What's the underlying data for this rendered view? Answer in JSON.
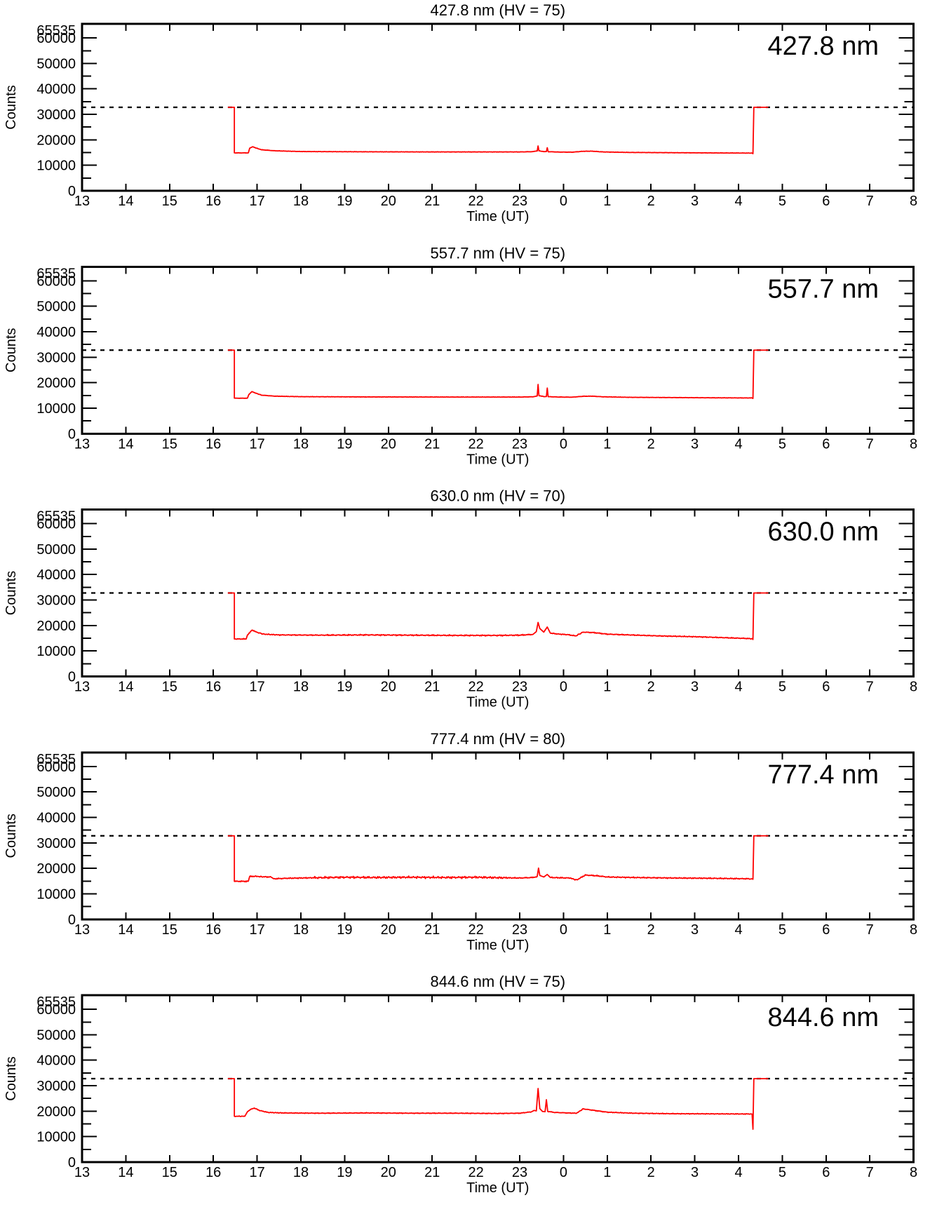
{
  "page": {
    "background": "#ffffff"
  },
  "colors": {
    "series": "#ff0000",
    "axis": "#000000",
    "threshold_line": "#000000",
    "text": "#000000"
  },
  "axis": {
    "x_label": "Time (UT)",
    "y_label": "Counts",
    "x_tick_labels": [
      "13",
      "14",
      "15",
      "16",
      "17",
      "18",
      "19",
      "20",
      "21",
      "22",
      "23",
      "0",
      "1",
      "2",
      "3",
      "4",
      "5",
      "6",
      "7",
      "8"
    ],
    "x_start_hour": 13,
    "x_span_hours": 19,
    "y_tick_labels": [
      "0",
      "10000",
      "20000",
      "30000",
      "40000",
      "50000",
      "60000",
      "65535"
    ],
    "y_major_values": [
      0,
      10000,
      20000,
      30000,
      40000,
      50000,
      60000,
      65535
    ],
    "y_minor_step": 5000,
    "ylim": [
      0,
      65535
    ],
    "threshold_value": 32767,
    "grid": false
  },
  "chart_data": [
    {
      "type": "line",
      "title": "427.8 nm (HV = 75)",
      "corner_label": "427.8 nm",
      "wavelength_nm": 427.8,
      "hv": 75,
      "xlabel": "Time (UT)",
      "ylabel": "Counts",
      "noise_amp": 90,
      "noise_boost": null,
      "series": [
        [
          16.33,
          32767
        ],
        [
          16.48,
          32767
        ],
        [
          16.48,
          14870
        ],
        [
          16.8,
          14870
        ],
        [
          16.83,
          16700
        ],
        [
          16.9,
          17300
        ],
        [
          16.97,
          16800
        ],
        [
          17.1,
          16100
        ],
        [
          17.4,
          15700
        ],
        [
          18.0,
          15400
        ],
        [
          19.5,
          15300
        ],
        [
          21.0,
          15250
        ],
        [
          23.0,
          15250
        ],
        [
          23.3,
          15350
        ],
        [
          23.4,
          15650
        ],
        [
          23.42,
          17600
        ],
        [
          23.44,
          15650
        ],
        [
          23.55,
          15400
        ],
        [
          23.61,
          15400
        ],
        [
          23.63,
          16900
        ],
        [
          23.65,
          15350
        ],
        [
          23.9,
          15200
        ],
        [
          0.2,
          15150
        ],
        [
          0.45,
          15500
        ],
        [
          0.65,
          15550
        ],
        [
          0.9,
          15250
        ],
        [
          1.5,
          15050
        ],
        [
          2.5,
          14950
        ],
        [
          3.5,
          14850
        ],
        [
          4.2,
          14800
        ],
        [
          4.31,
          14800
        ],
        [
          4.33,
          14550
        ],
        [
          4.35,
          32767
        ],
        [
          4.68,
          32767
        ]
      ]
    },
    {
      "type": "line",
      "title": "557.7 nm (HV = 75)",
      "corner_label": "557.7 nm",
      "wavelength_nm": 557.7,
      "hv": 75,
      "xlabel": "Time (UT)",
      "ylabel": "Counts",
      "noise_amp": 90,
      "noise_boost": null,
      "series": [
        [
          16.33,
          32767
        ],
        [
          16.48,
          32767
        ],
        [
          16.48,
          13900
        ],
        [
          16.78,
          13900
        ],
        [
          16.81,
          15300
        ],
        [
          16.88,
          16500
        ],
        [
          16.95,
          16000
        ],
        [
          17.1,
          15100
        ],
        [
          17.4,
          14700
        ],
        [
          18.0,
          14500
        ],
        [
          19.5,
          14400
        ],
        [
          21.5,
          14350
        ],
        [
          23.0,
          14350
        ],
        [
          23.3,
          14450
        ],
        [
          23.4,
          14800
        ],
        [
          23.42,
          19300
        ],
        [
          23.44,
          14900
        ],
        [
          23.55,
          14550
        ],
        [
          23.61,
          14550
        ],
        [
          23.63,
          17900
        ],
        [
          23.65,
          14500
        ],
        [
          23.9,
          14350
        ],
        [
          0.2,
          14300
        ],
        [
          0.45,
          14650
        ],
        [
          0.65,
          14700
        ],
        [
          0.9,
          14450
        ],
        [
          1.5,
          14250
        ],
        [
          2.5,
          14150
        ],
        [
          3.5,
          14050
        ],
        [
          4.2,
          14000
        ],
        [
          4.31,
          14000
        ],
        [
          4.33,
          13800
        ],
        [
          4.35,
          32767
        ],
        [
          4.68,
          32767
        ]
      ]
    },
    {
      "type": "line",
      "title": "630.0 nm (HV = 70)",
      "corner_label": "630.0 nm",
      "wavelength_nm": 630.0,
      "hv": 70,
      "xlabel": "Time (UT)",
      "ylabel": "Counts",
      "noise_amp": 210,
      "noise_boost": [
        18.6,
        23.1,
        1.35
      ],
      "series": [
        [
          16.33,
          32767
        ],
        [
          16.48,
          32767
        ],
        [
          16.48,
          14700
        ],
        [
          16.75,
          14700
        ],
        [
          16.78,
          16300
        ],
        [
          16.88,
          18200
        ],
        [
          16.98,
          17400
        ],
        [
          17.15,
          16600
        ],
        [
          17.5,
          16300
        ],
        [
          18.5,
          16200
        ],
        [
          19.5,
          16300
        ],
        [
          20.5,
          16200
        ],
        [
          21.5,
          16100
        ],
        [
          22.5,
          16100
        ],
        [
          23.0,
          16200
        ],
        [
          23.3,
          16500
        ],
        [
          23.38,
          17600
        ],
        [
          23.42,
          21200
        ],
        [
          23.46,
          18800
        ],
        [
          23.55,
          17400
        ],
        [
          23.63,
          19400
        ],
        [
          23.7,
          17000
        ],
        [
          23.9,
          16600
        ],
        [
          0.1,
          16400
        ],
        [
          0.28,
          15900
        ],
        [
          0.45,
          17400
        ],
        [
          0.7,
          17200
        ],
        [
          1.0,
          16600
        ],
        [
          1.5,
          16300
        ],
        [
          2.2,
          15900
        ],
        [
          3.0,
          15600
        ],
        [
          3.7,
          15200
        ],
        [
          4.2,
          14900
        ],
        [
          4.31,
          14800
        ],
        [
          4.33,
          14500
        ],
        [
          4.35,
          32767
        ],
        [
          4.68,
          32767
        ]
      ]
    },
    {
      "type": "line",
      "title": "777.4 nm (HV = 80)",
      "corner_label": "777.4 nm",
      "wavelength_nm": 777.4,
      "hv": 80,
      "xlabel": "Time (UT)",
      "ylabel": "Counts",
      "noise_amp": 260,
      "noise_boost": [
        18.3,
        22.7,
        1.9
      ],
      "series": [
        [
          16.33,
          32767
        ],
        [
          16.48,
          32767
        ],
        [
          16.48,
          14900
        ],
        [
          16.8,
          14900
        ],
        [
          16.83,
          16800
        ],
        [
          16.95,
          16900
        ],
        [
          17.1,
          16700
        ],
        [
          17.3,
          16600
        ],
        [
          17.38,
          15900
        ],
        [
          17.7,
          16100
        ],
        [
          18.3,
          16300
        ],
        [
          19.0,
          16500
        ],
        [
          19.7,
          16400
        ],
        [
          20.5,
          16500
        ],
        [
          21.3,
          16400
        ],
        [
          22.0,
          16500
        ],
        [
          22.6,
          16300
        ],
        [
          23.0,
          16200
        ],
        [
          23.3,
          16400
        ],
        [
          23.4,
          16800
        ],
        [
          23.43,
          20100
        ],
        [
          23.46,
          17200
        ],
        [
          23.55,
          16600
        ],
        [
          23.63,
          17600
        ],
        [
          23.7,
          16400
        ],
        [
          23.9,
          16300
        ],
        [
          0.15,
          16200
        ],
        [
          0.3,
          15400
        ],
        [
          0.5,
          17350
        ],
        [
          0.75,
          17100
        ],
        [
          1.0,
          16600
        ],
        [
          1.6,
          16400
        ],
        [
          2.5,
          16200
        ],
        [
          3.3,
          16100
        ],
        [
          4.0,
          15950
        ],
        [
          4.25,
          15900
        ],
        [
          4.31,
          15900
        ],
        [
          4.33,
          15700
        ],
        [
          4.35,
          32767
        ],
        [
          4.68,
          32767
        ]
      ]
    },
    {
      "type": "line",
      "title": "844.6 nm (HV = 75)",
      "corner_label": "844.6 nm",
      "wavelength_nm": 844.6,
      "hv": 75,
      "xlabel": "Time (UT)",
      "ylabel": "Counts",
      "noise_amp": 170,
      "noise_boost": null,
      "series": [
        [
          16.33,
          32767
        ],
        [
          16.48,
          32767
        ],
        [
          16.48,
          18000
        ],
        [
          16.72,
          18000
        ],
        [
          16.78,
          19800
        ],
        [
          16.86,
          20800
        ],
        [
          16.94,
          21200
        ],
        [
          17.05,
          20300
        ],
        [
          17.25,
          19500
        ],
        [
          17.6,
          19300
        ],
        [
          18.5,
          19200
        ],
        [
          19.5,
          19300
        ],
        [
          20.5,
          19200
        ],
        [
          21.5,
          19200
        ],
        [
          22.5,
          19100
        ],
        [
          23.0,
          19200
        ],
        [
          23.25,
          19700
        ],
        [
          23.33,
          20300
        ],
        [
          23.38,
          20100
        ],
        [
          23.42,
          28900
        ],
        [
          23.46,
          21000
        ],
        [
          23.52,
          19900
        ],
        [
          23.58,
          19800
        ],
        [
          23.61,
          24500
        ],
        [
          23.64,
          19900
        ],
        [
          23.8,
          19500
        ],
        [
          0.1,
          19300
        ],
        [
          0.3,
          19200
        ],
        [
          0.45,
          20900
        ],
        [
          0.7,
          20300
        ],
        [
          1.0,
          19600
        ],
        [
          1.6,
          19200
        ],
        [
          2.5,
          19000
        ],
        [
          3.3,
          18950
        ],
        [
          4.1,
          18900
        ],
        [
          4.28,
          18900
        ],
        [
          4.31,
          18850
        ],
        [
          4.33,
          12900
        ],
        [
          4.35,
          32767
        ],
        [
          4.68,
          32767
        ]
      ]
    }
  ]
}
